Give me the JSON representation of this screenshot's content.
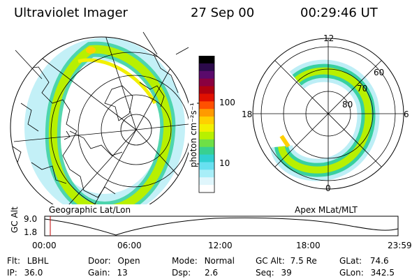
{
  "header": {
    "instrument": "Ultraviolet Imager",
    "date": "27 Sep 00",
    "time": "00:29:46 UT"
  },
  "left_panel": {
    "caption": "Geographic Lat/Lon"
  },
  "right_panel": {
    "caption": "Apex MLat/MLT",
    "mlt_labels": [
      "12",
      "18",
      "6",
      "0"
    ],
    "mlat_labels": [
      "60",
      "70",
      "80"
    ]
  },
  "colorbar": {
    "unit_label": "photon cm⁻²s⁻¹",
    "tick_labels": [
      "100",
      "10"
    ],
    "colors": [
      "#000000",
      "#2b0a4a",
      "#5a0a6b",
      "#8a0040",
      "#b00010",
      "#e01000",
      "#ff5000",
      "#ff9a00",
      "#ffd000",
      "#f2f000",
      "#b8f000",
      "#6ee046",
      "#38d090",
      "#30d0d0",
      "#68e0f0",
      "#a8eef8",
      "#e0f6fc",
      "#ffffff"
    ]
  },
  "altitude_plot": {
    "ylabel": "GC Alt",
    "y_ticks": [
      "9.0",
      "1.8"
    ],
    "x_ticks": [
      "00:00",
      "06:00",
      "12:00",
      "18:00",
      "23:59"
    ],
    "marker_time": "00:29"
  },
  "status": {
    "flt": {
      "label": "Flt:",
      "value": "LBHL"
    },
    "ip": {
      "label": "IP:",
      "value": "36.0"
    },
    "door": {
      "label": "Door:",
      "value": "Open"
    },
    "gain": {
      "label": "Gain:",
      "value": "13"
    },
    "mode": {
      "label": "Mode:",
      "value": "Normal"
    },
    "dsp": {
      "label": "Dsp:",
      "value": "2.6"
    },
    "gcalt": {
      "label": "GC Alt:",
      "value": "7.5 Re"
    },
    "seq": {
      "label": "Seq:",
      "value": "39"
    },
    "glat": {
      "label": "GLat:",
      "value": "74.6"
    },
    "glon": {
      "label": "GLon:",
      "value": "342.5"
    }
  }
}
